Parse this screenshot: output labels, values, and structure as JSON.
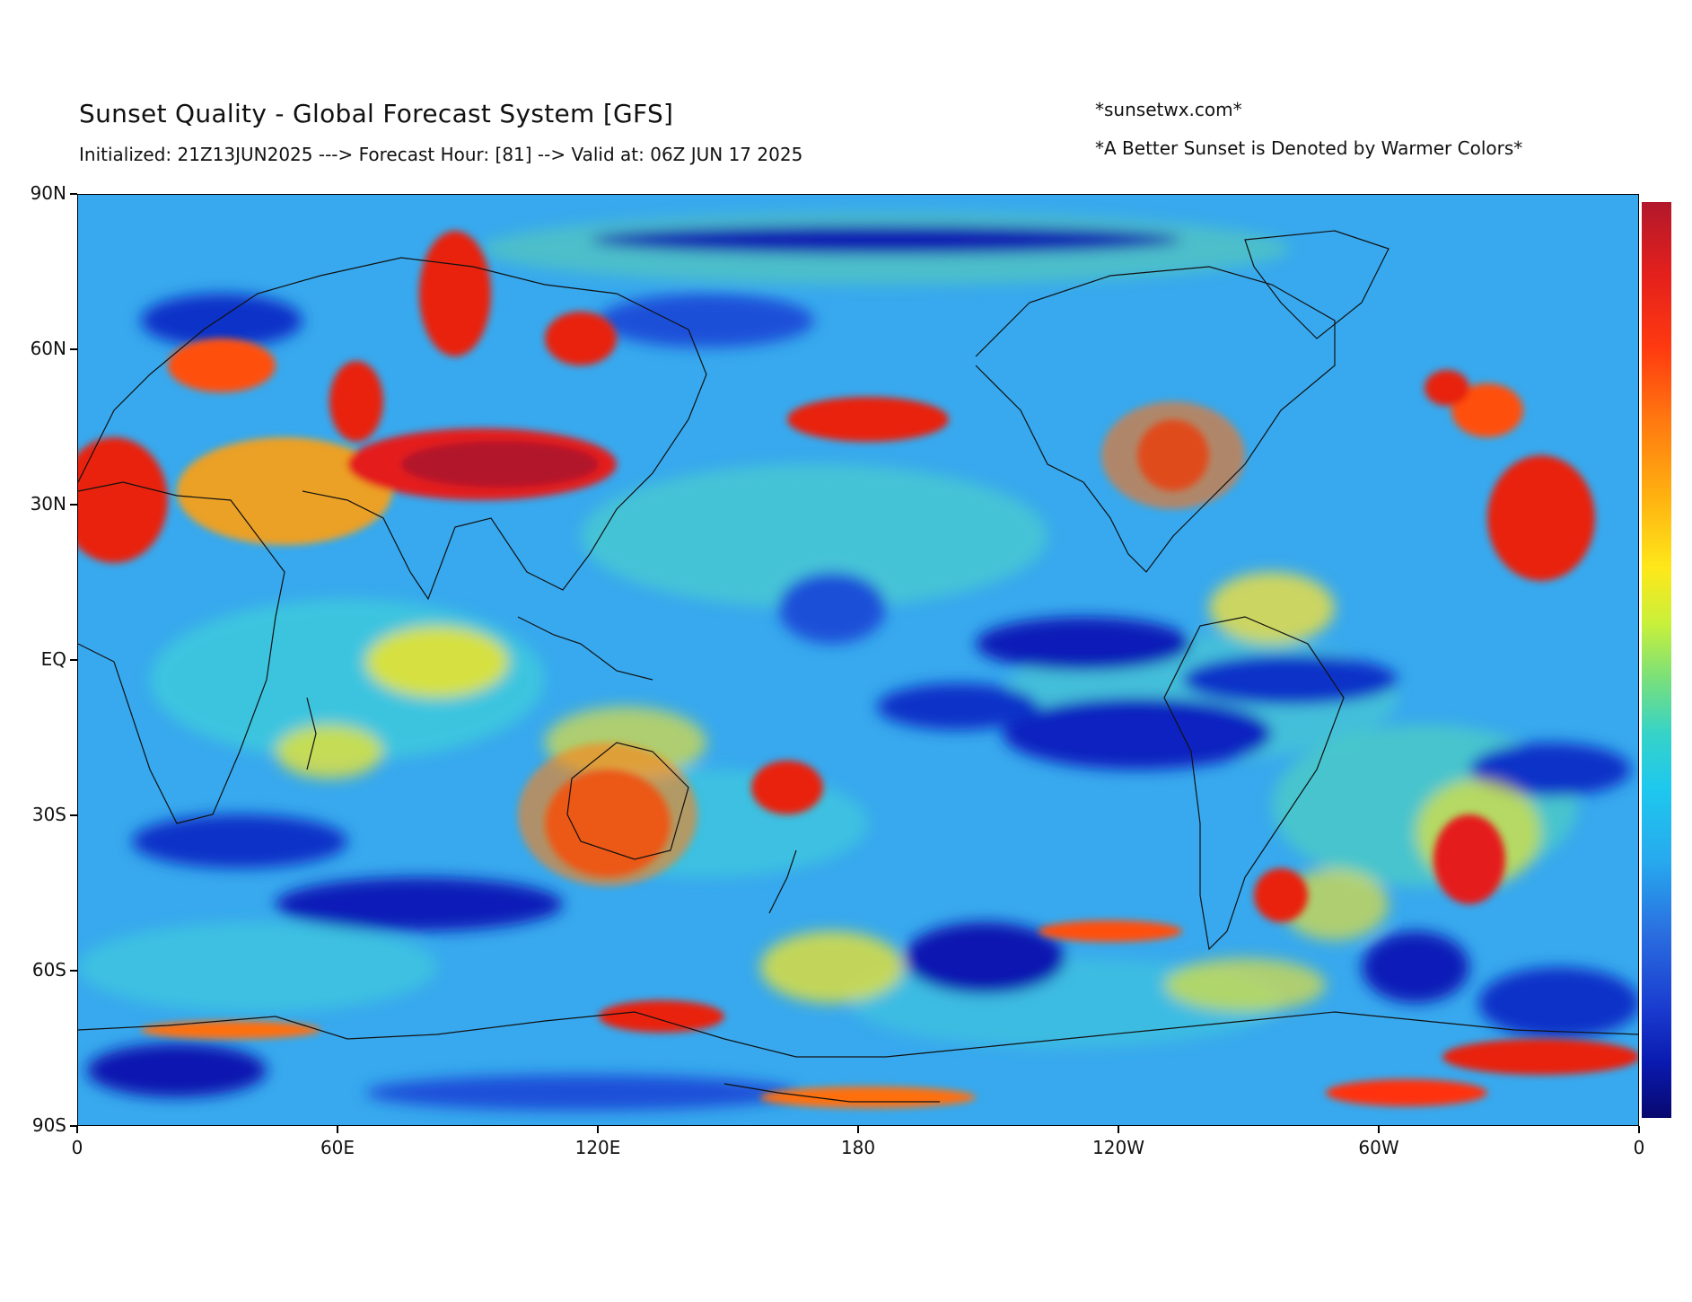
{
  "header": {
    "title": "Sunset Quality - Global Forecast System [GFS]",
    "subtitle": "Initialized: 21Z13JUN2025 ---> Forecast Hour: [81] --> Valid at: 06Z JUN 17 2025",
    "site": "*sunsetwx.com*",
    "note": "*A Better Sunset is Denoted by Warmer Colors*"
  },
  "axes": {
    "y_ticks": [
      "90N",
      "60N",
      "30N",
      "EQ",
      "30S",
      "60S",
      "90S"
    ],
    "x_ticks": [
      "0",
      "60E",
      "120E",
      "180",
      "120W",
      "60W",
      "0"
    ]
  },
  "legend": {
    "colormap": "jet",
    "warm_color": "#b2182b",
    "cool_color": "#08086e"
  }
}
